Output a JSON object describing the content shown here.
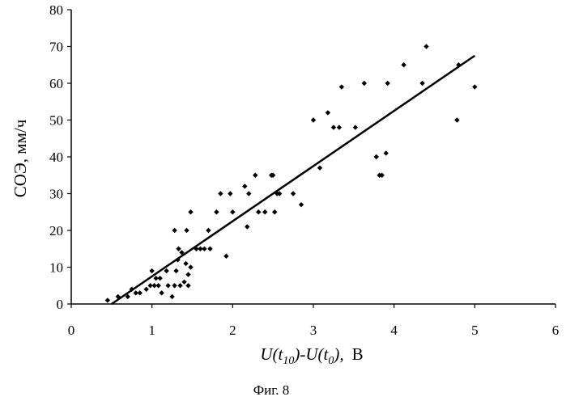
{
  "chart_data": {
    "type": "scatter",
    "title": "",
    "caption": "Фиг. 8",
    "xlabel_parts": [
      "U(t",
      "10",
      ")-U(t",
      "0",
      "),",
      "В"
    ],
    "ylabel": "СОЭ, мм/ч",
    "xlim": [
      0,
      6
    ],
    "ylim": [
      0,
      80
    ],
    "xticks": [
      0,
      1,
      2,
      3,
      4,
      5,
      6
    ],
    "yticks": [
      0,
      10,
      20,
      30,
      40,
      50,
      60,
      70,
      80
    ],
    "grid": false,
    "legend": "none",
    "point_color": "#000000",
    "series": [
      {
        "points": [
          [
            0.45,
            1
          ],
          [
            0.58,
            2
          ],
          [
            0.7,
            2
          ],
          [
            0.75,
            4
          ],
          [
            0.8,
            3
          ],
          [
            0.85,
            3
          ],
          [
            0.93,
            4
          ],
          [
            0.98,
            5
          ],
          [
            1.0,
            9
          ],
          [
            1.03,
            5
          ],
          [
            1.05,
            7
          ],
          [
            1.08,
            5
          ],
          [
            1.1,
            7
          ],
          [
            1.12,
            3
          ],
          [
            1.18,
            9
          ],
          [
            1.2,
            5
          ],
          [
            1.25,
            2
          ],
          [
            1.28,
            5
          ],
          [
            1.28,
            20
          ],
          [
            1.3,
            9
          ],
          [
            1.32,
            12
          ],
          [
            1.33,
            15
          ],
          [
            1.35,
            5
          ],
          [
            1.37,
            14
          ],
          [
            1.4,
            6
          ],
          [
            1.42,
            11
          ],
          [
            1.43,
            20
          ],
          [
            1.45,
            8
          ],
          [
            1.45,
            5
          ],
          [
            1.48,
            10
          ],
          [
            1.48,
            25
          ],
          [
            1.55,
            15
          ],
          [
            1.6,
            15
          ],
          [
            1.65,
            15
          ],
          [
            1.7,
            20
          ],
          [
            1.72,
            15
          ],
          [
            1.8,
            25
          ],
          [
            1.85,
            30
          ],
          [
            1.92,
            13
          ],
          [
            1.97,
            30
          ],
          [
            2.0,
            25
          ],
          [
            2.15,
            32
          ],
          [
            2.18,
            21
          ],
          [
            2.2,
            30
          ],
          [
            2.28,
            35
          ],
          [
            2.32,
            25
          ],
          [
            2.4,
            25
          ],
          [
            2.48,
            35
          ],
          [
            2.5,
            35
          ],
          [
            2.52,
            25
          ],
          [
            2.55,
            30
          ],
          [
            2.58,
            30
          ],
          [
            2.75,
            30
          ],
          [
            2.85,
            27
          ],
          [
            3.0,
            50
          ],
          [
            3.08,
            37
          ],
          [
            3.18,
            52
          ],
          [
            3.25,
            48
          ],
          [
            3.32,
            48
          ],
          [
            3.35,
            59
          ],
          [
            3.52,
            48
          ],
          [
            3.63,
            60
          ],
          [
            3.78,
            40
          ],
          [
            3.82,
            35
          ],
          [
            3.85,
            35
          ],
          [
            3.9,
            41
          ],
          [
            3.92,
            60
          ],
          [
            4.12,
            65
          ],
          [
            4.35,
            60
          ],
          [
            4.4,
            70
          ],
          [
            4.78,
            50
          ],
          [
            4.8,
            65
          ],
          [
            5.0,
            59
          ]
        ]
      }
    ],
    "trendline": {
      "x": [
        0.5,
        5.0
      ],
      "y": [
        0,
        67.5
      ]
    }
  }
}
